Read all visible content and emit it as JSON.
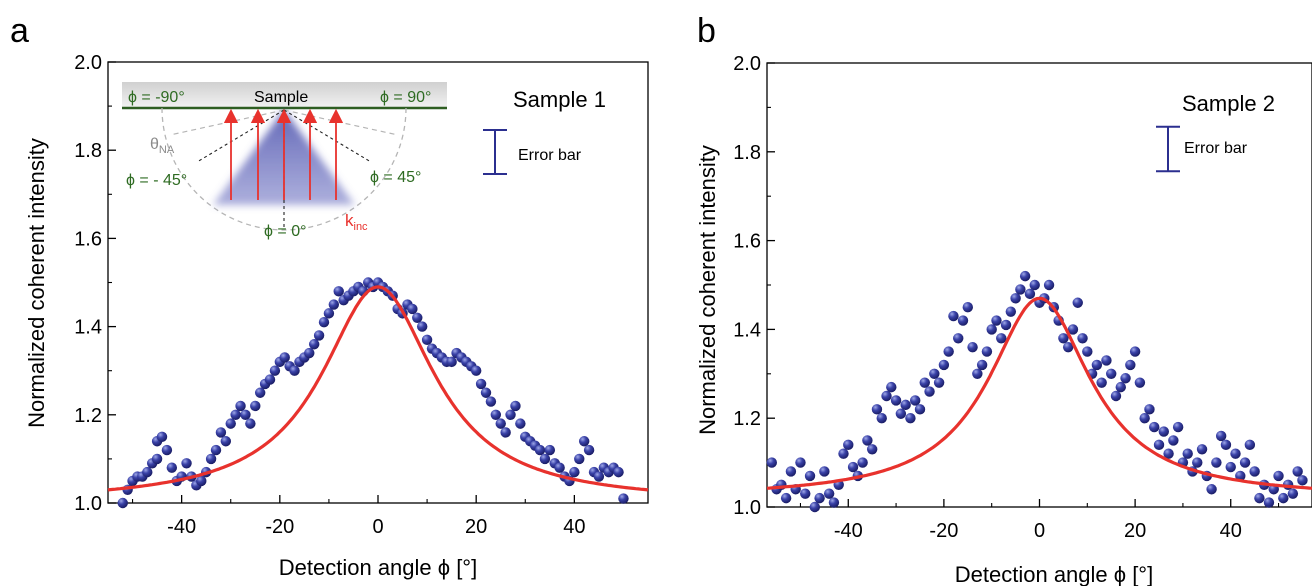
{
  "colors": {
    "points": "#2b2f8f",
    "fit": "#e8322d",
    "axis": "#000000",
    "inset_green": "#2e6b22",
    "errorbar": "#2b2f8f"
  },
  "chart_data": [
    {
      "type": "scatter",
      "panel": "a",
      "xlabel": "Detection angle ϕ [°]",
      "ylabel": "Normalized coherent intensity",
      "xlim": [
        -55,
        55
      ],
      "ylim": [
        1.0,
        2.0
      ],
      "xticks": [
        -40,
        -20,
        0,
        20,
        40
      ],
      "yticks": [
        1.0,
        1.2,
        1.4,
        1.6,
        1.8,
        2.0
      ],
      "legend_text": "Sample 1",
      "errorbar_label": "Error bar",
      "errorbar_half_height": 0.05,
      "fit": {
        "name": "fit",
        "peak": 1.49,
        "baseline": 1.0,
        "center": 0,
        "width": 14
      },
      "series": [
        {
          "name": "data",
          "points": [
            [
              -52,
              1.0
            ],
            [
              -51,
              1.03
            ],
            [
              -50,
              1.05
            ],
            [
              -49,
              1.06
            ],
            [
              -48,
              1.06
            ],
            [
              -47,
              1.07
            ],
            [
              -46,
              1.09
            ],
            [
              -45,
              1.1
            ],
            [
              -45,
              1.14
            ],
            [
              -44,
              1.15
            ],
            [
              -43,
              1.12
            ],
            [
              -42,
              1.08
            ],
            [
              -41,
              1.05
            ],
            [
              -40,
              1.06
            ],
            [
              -39,
              1.09
            ],
            [
              -38,
              1.06
            ],
            [
              -37,
              1.04
            ],
            [
              -36,
              1.05
            ],
            [
              -35,
              1.07
            ],
            [
              -34,
              1.1
            ],
            [
              -33,
              1.12
            ],
            [
              -32,
              1.16
            ],
            [
              -31,
              1.14
            ],
            [
              -30,
              1.18
            ],
            [
              -29,
              1.2
            ],
            [
              -28,
              1.22
            ],
            [
              -27,
              1.2
            ],
            [
              -26,
              1.18
            ],
            [
              -25,
              1.22
            ],
            [
              -24,
              1.25
            ],
            [
              -23,
              1.27
            ],
            [
              -22,
              1.28
            ],
            [
              -21,
              1.3
            ],
            [
              -20,
              1.32
            ],
            [
              -19,
              1.33
            ],
            [
              -18,
              1.31
            ],
            [
              -17,
              1.3
            ],
            [
              -16,
              1.32
            ],
            [
              -15,
              1.33
            ],
            [
              -14,
              1.34
            ],
            [
              -13,
              1.36
            ],
            [
              -12,
              1.38
            ],
            [
              -11,
              1.41
            ],
            [
              -10,
              1.43
            ],
            [
              -9,
              1.45
            ],
            [
              -8,
              1.48
            ],
            [
              -7,
              1.46
            ],
            [
              -6,
              1.47
            ],
            [
              -5,
              1.48
            ],
            [
              -4,
              1.49
            ],
            [
              -3,
              1.48
            ],
            [
              -2,
              1.5
            ],
            [
              -1,
              1.49
            ],
            [
              0,
              1.5
            ],
            [
              1,
              1.49
            ],
            [
              2,
              1.48
            ],
            [
              3,
              1.47
            ],
            [
              4,
              1.44
            ],
            [
              5,
              1.43
            ],
            [
              6,
              1.45
            ],
            [
              7,
              1.44
            ],
            [
              8,
              1.42
            ],
            [
              9,
              1.4
            ],
            [
              10,
              1.37
            ],
            [
              11,
              1.35
            ],
            [
              12,
              1.34
            ],
            [
              13,
              1.33
            ],
            [
              14,
              1.32
            ],
            [
              15,
              1.32
            ],
            [
              16,
              1.34
            ],
            [
              17,
              1.33
            ],
            [
              18,
              1.32
            ],
            [
              19,
              1.31
            ],
            [
              20,
              1.3
            ],
            [
              21,
              1.27
            ],
            [
              22,
              1.25
            ],
            [
              23,
              1.23
            ],
            [
              24,
              1.2
            ],
            [
              25,
              1.18
            ],
            [
              26,
              1.16
            ],
            [
              27,
              1.2
            ],
            [
              28,
              1.22
            ],
            [
              29,
              1.18
            ],
            [
              30,
              1.15
            ],
            [
              31,
              1.14
            ],
            [
              32,
              1.13
            ],
            [
              33,
              1.12
            ],
            [
              34,
              1.1
            ],
            [
              35,
              1.12
            ],
            [
              36,
              1.09
            ],
            [
              37,
              1.08
            ],
            [
              38,
              1.06
            ],
            [
              39,
              1.05
            ],
            [
              40,
              1.07
            ],
            [
              41,
              1.1
            ],
            [
              42,
              1.14
            ],
            [
              43,
              1.12
            ],
            [
              44,
              1.07
            ],
            [
              45,
              1.06
            ],
            [
              46,
              1.08
            ],
            [
              47,
              1.07
            ],
            [
              48,
              1.08
            ],
            [
              49,
              1.07
            ],
            [
              50,
              1.01
            ]
          ]
        }
      ],
      "inset": {
        "sample_label": "Sample",
        "phi_m90": "ϕ = -90°",
        "phi_p90": "ϕ = 90°",
        "phi_m45": "ϕ = - 45°",
        "phi_p45": "ϕ = 45°",
        "phi_0": "ϕ = 0°",
        "theta_na": "θ",
        "theta_na_sub": "NA",
        "k_inc": "k",
        "k_inc_sub": "inc"
      }
    },
    {
      "type": "scatter",
      "panel": "b",
      "xlabel": "Detection angle ϕ [°]",
      "ylabel": "Normalized coherent intensity",
      "xlim": [
        -57,
        57
      ],
      "ylim": [
        1.0,
        2.0
      ],
      "xticks": [
        -40,
        -20,
        0,
        20,
        40
      ],
      "yticks": [
        1.0,
        1.2,
        1.4,
        1.6,
        1.8,
        2.0
      ],
      "legend_text": "Sample 2",
      "errorbar_label": "Error bar",
      "errorbar_half_height": 0.05,
      "fit": {
        "name": "fit",
        "peak": 1.47,
        "baseline": 1.02,
        "center": 0,
        "width": 13
      },
      "series": [
        {
          "name": "data",
          "points": [
            [
              -56,
              1.1
            ],
            [
              -55,
              1.04
            ],
            [
              -54,
              1.05
            ],
            [
              -53,
              1.02
            ],
            [
              -52,
              1.08
            ],
            [
              -51,
              1.04
            ],
            [
              -50,
              1.1
            ],
            [
              -49,
              1.03
            ],
            [
              -48,
              1.07
            ],
            [
              -47,
              1.0
            ],
            [
              -46,
              1.02
            ],
            [
              -45,
              1.08
            ],
            [
              -44,
              1.03
            ],
            [
              -43,
              1.01
            ],
            [
              -42,
              1.05
            ],
            [
              -41,
              1.12
            ],
            [
              -40,
              1.14
            ],
            [
              -39,
              1.09
            ],
            [
              -38,
              1.07
            ],
            [
              -37,
              1.1
            ],
            [
              -36,
              1.15
            ],
            [
              -35,
              1.13
            ],
            [
              -34,
              1.22
            ],
            [
              -33,
              1.2
            ],
            [
              -32,
              1.25
            ],
            [
              -31,
              1.27
            ],
            [
              -30,
              1.24
            ],
            [
              -29,
              1.21
            ],
            [
              -28,
              1.23
            ],
            [
              -27,
              1.2
            ],
            [
              -26,
              1.24
            ],
            [
              -25,
              1.22
            ],
            [
              -24,
              1.28
            ],
            [
              -23,
              1.26
            ],
            [
              -22,
              1.3
            ],
            [
              -21,
              1.28
            ],
            [
              -20,
              1.32
            ],
            [
              -19,
              1.35
            ],
            [
              -18,
              1.43
            ],
            [
              -17,
              1.38
            ],
            [
              -16,
              1.42
            ],
            [
              -15,
              1.45
            ],
            [
              -14,
              1.36
            ],
            [
              -13,
              1.3
            ],
            [
              -12,
              1.32
            ],
            [
              -11,
              1.35
            ],
            [
              -10,
              1.4
            ],
            [
              -9,
              1.42
            ],
            [
              -8,
              1.38
            ],
            [
              -7,
              1.41
            ],
            [
              -6,
              1.44
            ],
            [
              -5,
              1.47
            ],
            [
              -4,
              1.49
            ],
            [
              -3,
              1.52
            ],
            [
              -2,
              1.48
            ],
            [
              -1,
              1.5
            ],
            [
              0,
              1.46
            ],
            [
              1,
              1.47
            ],
            [
              2,
              1.5
            ],
            [
              3,
              1.45
            ],
            [
              4,
              1.42
            ],
            [
              5,
              1.38
            ],
            [
              6,
              1.36
            ],
            [
              7,
              1.4
            ],
            [
              8,
              1.46
            ],
            [
              9,
              1.38
            ],
            [
              10,
              1.35
            ],
            [
              11,
              1.3
            ],
            [
              12,
              1.32
            ],
            [
              13,
              1.28
            ],
            [
              14,
              1.33
            ],
            [
              15,
              1.3
            ],
            [
              16,
              1.25
            ],
            [
              17,
              1.27
            ],
            [
              18,
              1.29
            ],
            [
              19,
              1.32
            ],
            [
              20,
              1.35
            ],
            [
              21,
              1.28
            ],
            [
              22,
              1.2
            ],
            [
              23,
              1.22
            ],
            [
              24,
              1.18
            ],
            [
              25,
              1.14
            ],
            [
              26,
              1.17
            ],
            [
              27,
              1.12
            ],
            [
              28,
              1.15
            ],
            [
              29,
              1.18
            ],
            [
              30,
              1.1
            ],
            [
              31,
              1.12
            ],
            [
              32,
              1.08
            ],
            [
              33,
              1.1
            ],
            [
              34,
              1.13
            ],
            [
              35,
              1.07
            ],
            [
              36,
              1.04
            ],
            [
              37,
              1.1
            ],
            [
              38,
              1.16
            ],
            [
              39,
              1.14
            ],
            [
              40,
              1.09
            ],
            [
              41,
              1.12
            ],
            [
              42,
              1.07
            ],
            [
              43,
              1.1
            ],
            [
              44,
              1.14
            ],
            [
              45,
              1.08
            ],
            [
              46,
              1.02
            ],
            [
              47,
              1.05
            ],
            [
              48,
              1.01
            ],
            [
              49,
              1.04
            ],
            [
              50,
              1.07
            ],
            [
              51,
              1.02
            ],
            [
              52,
              1.05
            ],
            [
              53,
              1.03
            ],
            [
              54,
              1.08
            ],
            [
              55,
              1.06
            ]
          ]
        }
      ]
    }
  ]
}
